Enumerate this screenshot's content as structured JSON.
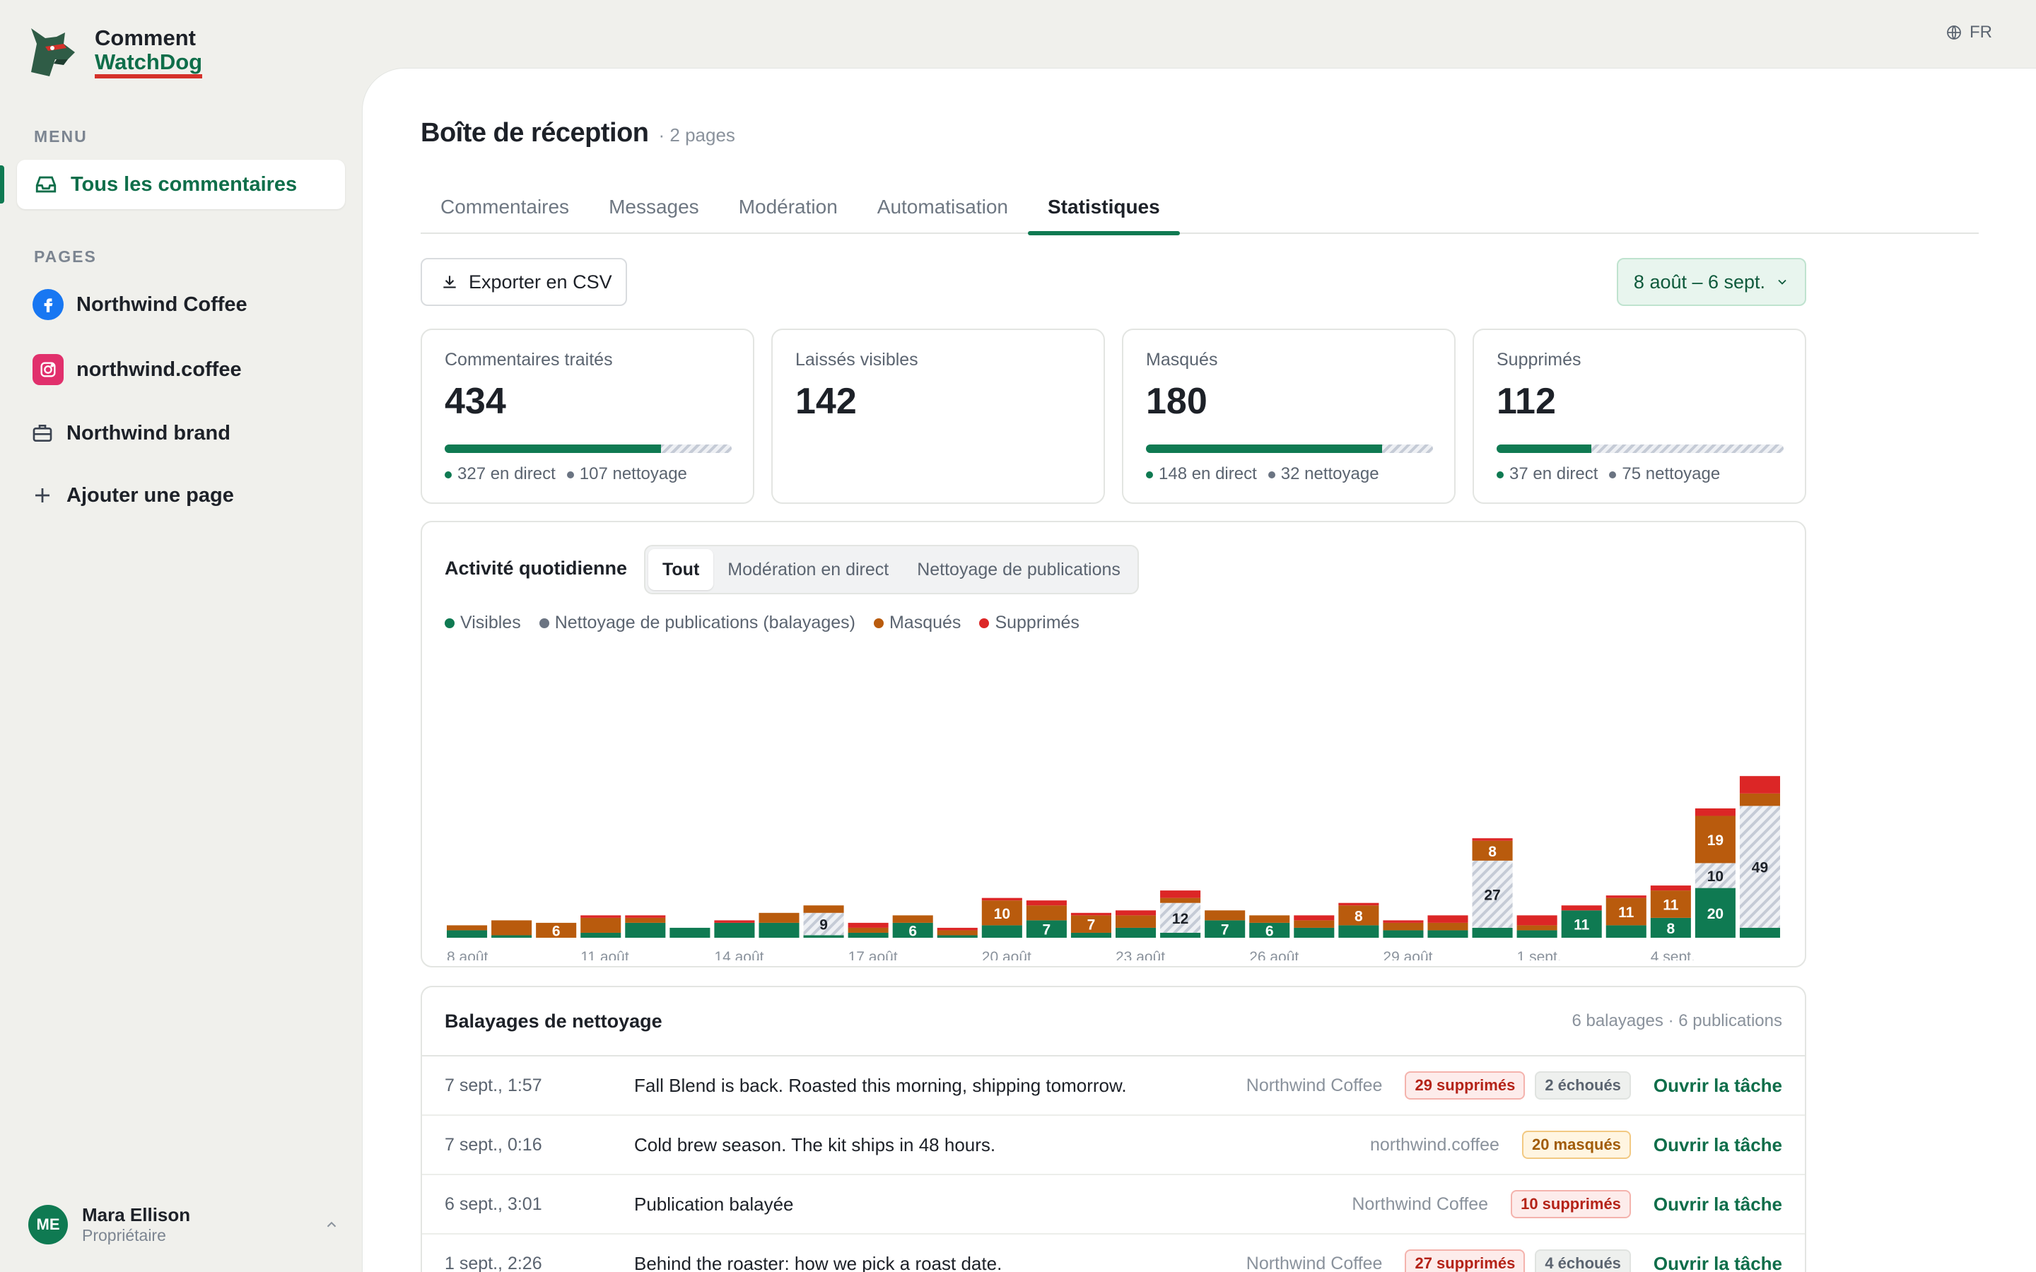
{
  "app": {
    "name_line1": "Comment",
    "name_line2": "WatchDog",
    "lang": "FR"
  },
  "sidebar": {
    "menu_label": "MENU",
    "menu_item": "Tous les commentaires",
    "pages_label": "PAGES",
    "pages": [
      {
        "label": "Northwind Coffee",
        "icon": "facebook-icon"
      },
      {
        "label": "northwind.coffee",
        "icon": "instagram-icon"
      },
      {
        "label": "Northwind brand",
        "icon": "briefcase-icon"
      },
      {
        "label": "Ajouter une page",
        "icon": "plus-icon"
      }
    ],
    "user": {
      "initials": "ME",
      "name": "Mara Ellison",
      "role": "Propriétaire"
    }
  },
  "header": {
    "title": "Boîte de réception",
    "subtitle": "· 2 pages"
  },
  "tabs": [
    "Commentaires",
    "Messages",
    "Modération",
    "Automatisation",
    "Statistiques"
  ],
  "toolbar": {
    "export_label": "Exporter en CSV",
    "date_range": "8 août – 6 sept."
  },
  "stats": [
    {
      "label": "Commentaires traités",
      "value": "434",
      "live_fraction": 0.753,
      "meta1": "327 en direct",
      "meta2": "107 nettoyage"
    },
    {
      "label": "Laissés visibles",
      "value": "142"
    },
    {
      "label": "Masqués",
      "value": "180",
      "live_fraction": 0.822,
      "meta1": "148 en direct",
      "meta2": "32 nettoyage"
    },
    {
      "label": "Supprimés",
      "value": "112",
      "live_fraction": 0.33,
      "meta1": "37 en direct",
      "meta2": "75 nettoyage"
    }
  ],
  "activity": {
    "title": "Activité quotidienne",
    "filters": [
      "Tout",
      "Modération en direct",
      "Nettoyage de publications"
    ],
    "active_filter": "Tout",
    "legend": [
      "Visibles",
      "Nettoyage de publications (balayages)",
      "Masqués",
      "Supprimés"
    ]
  },
  "colors": {
    "visible": "#0f7a52",
    "sweep": "#c5cbd6",
    "hidden": "#b95b0d",
    "deleted": "#dc2626"
  },
  "chart_data": {
    "type": "bar",
    "stacked": true,
    "categories": [
      "8 août",
      "9 août",
      "10 août",
      "11 août",
      "12 août",
      "13 août",
      "14 août",
      "15 août",
      "16 août",
      "17 août",
      "18 août",
      "19 août",
      "20 août",
      "21 août",
      "22 août",
      "23 août",
      "24 août",
      "25 août",
      "26 août",
      "27 août",
      "28 août",
      "29 août",
      "30 août",
      "31 août",
      "1 sept.",
      "2 sept.",
      "3 sept.",
      "4 sept.",
      "5 sept.",
      "6 sept."
    ],
    "tick_labels": [
      "8 août",
      "11 août",
      "14 août",
      "17 août",
      "20 août",
      "23 août",
      "26 août",
      "29 août",
      "1 sept.",
      "4 sept."
    ],
    "series": [
      {
        "name": "Visibles",
        "values": [
          3,
          1,
          0,
          2,
          6,
          4,
          6,
          6,
          1,
          2,
          6,
          1,
          5,
          7,
          2,
          4,
          2,
          7,
          6,
          4,
          5,
          3,
          3,
          4,
          3,
          11,
          5,
          8,
          20,
          4
        ]
      },
      {
        "name": "Nettoyage de publications (balayages)",
        "values": [
          0,
          0,
          0,
          0,
          0,
          0,
          0,
          0,
          9,
          0,
          0,
          0,
          0,
          0,
          0,
          0,
          12,
          0,
          0,
          0,
          0,
          0,
          0,
          27,
          0,
          0,
          0,
          0,
          10,
          49
        ]
      },
      {
        "name": "Masqués",
        "values": [
          2,
          6,
          6,
          6,
          2,
          0,
          0,
          4,
          3,
          2,
          3,
          2,
          10,
          6,
          7,
          5,
          2,
          4,
          3,
          3,
          8,
          3,
          3,
          8,
          2,
          0,
          11,
          11,
          19,
          5
        ]
      },
      {
        "name": "Supprimés",
        "values": [
          0,
          0,
          0,
          1,
          1,
          0,
          1,
          0,
          0,
          2,
          0,
          1,
          1,
          2,
          1,
          2,
          3,
          0,
          0,
          2,
          1,
          1,
          3,
          1,
          4,
          2,
          1,
          2,
          3,
          7
        ]
      }
    ],
    "data_labels": [
      {
        "index": 2,
        "series": "Masqués",
        "text": "6"
      },
      {
        "index": 8,
        "series": "Nettoyage de publications (balayages)",
        "text": "9"
      },
      {
        "index": 10,
        "series": "Visibles",
        "text": "6"
      },
      {
        "index": 12,
        "series": "Masqués",
        "text": "10"
      },
      {
        "index": 13,
        "series": "Visibles",
        "text": "7"
      },
      {
        "index": 14,
        "series": "Masqués",
        "text": "7"
      },
      {
        "index": 16,
        "series": "Nettoyage de publications (balayages)",
        "text": "12"
      },
      {
        "index": 17,
        "series": "Visibles",
        "text": "7"
      },
      {
        "index": 18,
        "series": "Visibles",
        "text": "6"
      },
      {
        "index": 20,
        "series": "Masqués",
        "text": "8"
      },
      {
        "index": 23,
        "series": "Nettoyage de publications (balayages)",
        "text": "27"
      },
      {
        "index": 23,
        "series": "Masqués",
        "text": "8"
      },
      {
        "index": 25,
        "series": "Visibles",
        "text": "11"
      },
      {
        "index": 26,
        "series": "Masqués",
        "text": "11"
      },
      {
        "index": 27,
        "series": "Visibles",
        "text": "8"
      },
      {
        "index": 27,
        "series": "Masqués",
        "text": "11"
      },
      {
        "index": 28,
        "series": "Visibles",
        "text": "20"
      },
      {
        "index": 28,
        "series": "Nettoyage de publications (balayages)",
        "text": "10"
      },
      {
        "index": 28,
        "series": "Masqués",
        "text": "19"
      },
      {
        "index": 29,
        "series": "Nettoyage de publications (balayages)",
        "text": "49"
      }
    ],
    "legend_position": "top-left",
    "grid": false
  },
  "sweeps": {
    "title": "Balayages de nettoyage",
    "count": "6 balayages · 6 publications",
    "action_label": "Ouvrir la tâche",
    "rows": [
      {
        "date": "7 sept., 1:57",
        "post": "Fall Blend is back. Roasted this morning, shipping tomorrow.",
        "page": "Northwind Coffee",
        "badges": [
          {
            "text": "29 supprimés",
            "kind": "red"
          },
          {
            "text": "2 échoués",
            "kind": "gray"
          }
        ]
      },
      {
        "date": "7 sept., 0:16",
        "post": "Cold brew season. The kit ships in 48 hours.",
        "page": "northwind.coffee",
        "badges": [
          {
            "text": "20 masqués",
            "kind": "orange"
          }
        ]
      },
      {
        "date": "6 sept., 3:01",
        "post": "Publication balayée",
        "page": "Northwind Coffee",
        "badges": [
          {
            "text": "10 supprimés",
            "kind": "red"
          }
        ]
      },
      {
        "date": "1 sept., 2:26",
        "post": "Behind the roaster: how we pick a roast date.",
        "page": "Northwind Coffee",
        "badges": [
          {
            "text": "27 supprimés",
            "kind": "red"
          },
          {
            "text": "4 échoués",
            "kind": "gray"
          }
        ]
      }
    ]
  }
}
